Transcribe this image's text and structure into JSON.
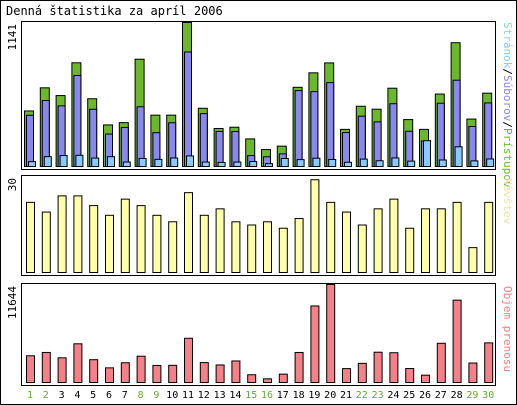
{
  "title": "Denná štatistika za apríl 2006",
  "colors": {
    "hits": "#6BB82C",
    "files": "#8888EE",
    "pages": "#88CCFF",
    "visits": "#FFFFAA",
    "kbytes": "#F48088",
    "weekday_label": "#000000",
    "weekend_label": "#66AA33",
    "frame": "#000000"
  },
  "chart_data": [
    {
      "type": "bar",
      "name": "hits-files-pages",
      "y_tick_label": "1141",
      "ylim": [
        0,
        1141
      ],
      "legend": [
        "Prístupov",
        "Súborov",
        "Stránok"
      ],
      "legend_separator": "/",
      "categories": [
        "1",
        "2",
        "3",
        "4",
        "5",
        "6",
        "7",
        "8",
        "9",
        "10",
        "11",
        "12",
        "13",
        "14",
        "15",
        "16",
        "17",
        "18",
        "19",
        "20",
        "21",
        "22",
        "23",
        "24",
        "25",
        "26",
        "27",
        "28",
        "29",
        "30"
      ],
      "weekend": [
        1,
        2,
        8,
        9,
        15,
        16,
        22,
        23,
        29,
        30
      ],
      "series": [
        {
          "name": "Prístupov",
          "values": [
            445,
            627,
            566,
            824,
            541,
            335,
            353,
            852,
            412,
            412,
            1141,
            466,
            307,
            317,
            225,
            141,
            168,
            631,
            745,
            823,
            300,
            482,
            459,
            624,
            377,
            300,
            578,
            982,
            381,
            585
          ]
        },
        {
          "name": "Súborov",
          "values": [
            411,
            527,
            485,
            724,
            458,
            263,
            315,
            478,
            274,
            352,
            909,
            424,
            284,
            283,
            94,
            84,
            107,
            605,
            597,
            668,
            275,
            404,
            359,
            502,
            285,
            208,
            506,
            687,
            323,
            508
          ]
        },
        {
          "name": "Stránok",
          "values": [
            46,
            85,
            94,
            96,
            74,
            85,
            43,
            71,
            64,
            75,
            91,
            43,
            40,
            43,
            47,
            30,
            71,
            62,
            73,
            63,
            41,
            66,
            53,
            75,
            50,
            211,
            59,
            163,
            52,
            67
          ]
        }
      ]
    },
    {
      "type": "bar",
      "name": "visits",
      "y_tick_label": "30",
      "ylim": [
        0,
        30
      ],
      "legend": [
        "Návštev"
      ],
      "categories": [
        "1",
        "2",
        "3",
        "4",
        "5",
        "6",
        "7",
        "8",
        "9",
        "10",
        "11",
        "12",
        "13",
        "14",
        "15",
        "16",
        "17",
        "18",
        "19",
        "20",
        "21",
        "22",
        "23",
        "24",
        "25",
        "26",
        "27",
        "28",
        "29",
        "30"
      ],
      "series": [
        {
          "name": "Návštev",
          "values": [
            22,
            19,
            24,
            24,
            21,
            18,
            23,
            21,
            18,
            16,
            25,
            18,
            20,
            16,
            15,
            16,
            14,
            17,
            29,
            22,
            19,
            15,
            20,
            23,
            14,
            20,
            20,
            22,
            8,
            22
          ]
        }
      ]
    },
    {
      "type": "bar",
      "name": "kbytes",
      "y_tick_label": "11644",
      "ylim": [
        0,
        11644
      ],
      "legend": [
        "Objem prenosu"
      ],
      "categories": [
        "1",
        "2",
        "3",
        "4",
        "5",
        "6",
        "7",
        "8",
        "9",
        "10",
        "11",
        "12",
        "13",
        "14",
        "15",
        "16",
        "17",
        "18",
        "19",
        "20",
        "21",
        "22",
        "23",
        "24",
        "25",
        "26",
        "27",
        "28",
        "29",
        "30"
      ],
      "series": [
        {
          "name": "Objem prenosu",
          "values": [
            3260,
            3650,
            3020,
            4670,
            2800,
            1840,
            2440,
            3210,
            2120,
            2140,
            5320,
            2460,
            2180,
            2650,
            1030,
            550,
            1100,
            3650,
            9120,
            11644,
            1750,
            2370,
            3680,
            3620,
            1760,
            980,
            4730,
            9800,
            2410,
            4780
          ]
        }
      ]
    }
  ]
}
